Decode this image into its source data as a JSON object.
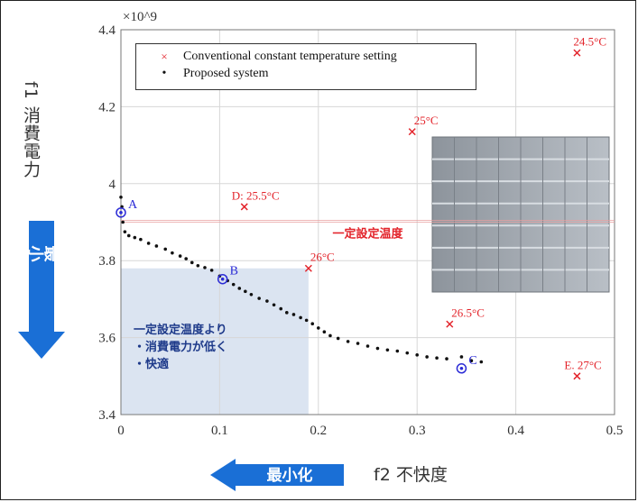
{
  "chart_data": {
    "type": "scatter",
    "ylabel": "f1 消費電力",
    "xlabel": "f2 不快度",
    "y_exponent": "×10^9",
    "xlim": [
      0,
      0.5
    ],
    "ylim": [
      3.4,
      4.4
    ],
    "x_ticks": [
      "0",
      "0.1",
      "0.2",
      "0.3",
      "0.4",
      "0.5"
    ],
    "y_ticks": [
      "3.4",
      "3.6",
      "3.8",
      "4",
      "4.2",
      "4.4"
    ],
    "legend": {
      "conventional": "Conventional constant temperature setting",
      "proposed": "Proposed system"
    },
    "conventional_points": [
      {
        "x": 0.462,
        "y": 4.34,
        "label": "24.5°C"
      },
      {
        "x": 0.295,
        "y": 4.135,
        "label": "25°C"
      },
      {
        "x": 0.125,
        "y": 3.94,
        "label": "D: 25.5°C"
      },
      {
        "x": 0.19,
        "y": 3.78,
        "label": "26°C"
      },
      {
        "x": 0.333,
        "y": 3.635,
        "label": "26.5°C"
      },
      {
        "x": 0.462,
        "y": 3.5,
        "label": "E. 27°C"
      }
    ],
    "proposed_points": [
      [
        0.0,
        3.965
      ],
      [
        0.001,
        3.94
      ],
      [
        0.002,
        3.9
      ],
      [
        0.004,
        3.875
      ],
      [
        0.008,
        3.865
      ],
      [
        0.014,
        3.86
      ],
      [
        0.02,
        3.855
      ],
      [
        0.028,
        3.845
      ],
      [
        0.036,
        3.838
      ],
      [
        0.045,
        3.83
      ],
      [
        0.052,
        3.82
      ],
      [
        0.06,
        3.812
      ],
      [
        0.066,
        3.805
      ],
      [
        0.072,
        3.795
      ],
      [
        0.078,
        3.787
      ],
      [
        0.085,
        3.782
      ],
      [
        0.092,
        3.775
      ],
      [
        0.1,
        3.76
      ],
      [
        0.108,
        3.748
      ],
      [
        0.114,
        3.738
      ],
      [
        0.12,
        3.728
      ],
      [
        0.126,
        3.72
      ],
      [
        0.132,
        3.712
      ],
      [
        0.14,
        3.702
      ],
      [
        0.148,
        3.695
      ],
      [
        0.155,
        3.685
      ],
      [
        0.162,
        3.675
      ],
      [
        0.168,
        3.665
      ],
      [
        0.175,
        3.66
      ],
      [
        0.182,
        3.652
      ],
      [
        0.188,
        3.645
      ],
      [
        0.194,
        3.636
      ],
      [
        0.2,
        3.625
      ],
      [
        0.206,
        3.615
      ],
      [
        0.212,
        3.605
      ],
      [
        0.22,
        3.598
      ],
      [
        0.23,
        3.59
      ],
      [
        0.24,
        3.585
      ],
      [
        0.25,
        3.578
      ],
      [
        0.26,
        3.572
      ],
      [
        0.27,
        3.568
      ],
      [
        0.28,
        3.565
      ],
      [
        0.29,
        3.56
      ],
      [
        0.3,
        3.555
      ],
      [
        0.31,
        3.55
      ],
      [
        0.32,
        3.547
      ],
      [
        0.33,
        3.545
      ],
      [
        0.345,
        3.55
      ],
      [
        0.355,
        3.54
      ],
      [
        0.365,
        3.537
      ]
    ],
    "highlighted": [
      {
        "name": "A",
        "x": 0.0,
        "y": 3.925
      },
      {
        "name": "B",
        "x": 0.103,
        "y": 3.752
      },
      {
        "name": "C",
        "x": 0.345,
        "y": 3.52
      }
    ],
    "region_text": [
      "一定設定温度より",
      "・消費電力が低く",
      "・快適"
    ],
    "reference_label": "一定設定温度"
  },
  "arrows": {
    "vertical": "最小化",
    "horizontal": "最小化"
  },
  "colors": {
    "conventional": "#e3242b",
    "proposed": "#111111",
    "highlight": "#2b2bd6",
    "region": "#dbe4f1",
    "arrow": "#1a6fd6"
  }
}
